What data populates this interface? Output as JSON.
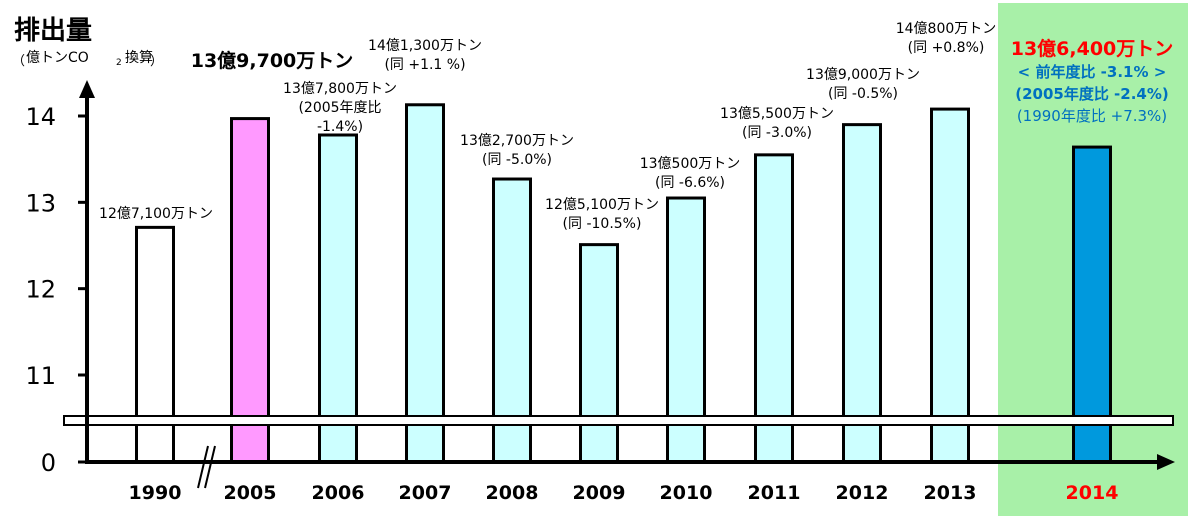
{
  "header": {
    "y_title": "排出量",
    "unit_open": "（",
    "unit_main": "億トンCO",
    "unit_sub": "2",
    "unit_tail": "換算",
    "unit_close": "）"
  },
  "chart_data": {
    "type": "bar",
    "title": "",
    "xlabel": "",
    "ylabel": "排出量 (億トンCO2換算)",
    "ylim": [
      11,
      14.5
    ],
    "y_ticks": [
      0,
      11,
      12,
      13,
      14
    ],
    "axis_break": true,
    "categories": [
      "1990",
      "2005",
      "2006",
      "2007",
      "2008",
      "2009",
      "2010",
      "2011",
      "2012",
      "2013",
      "2014"
    ],
    "values": [
      12.71,
      13.97,
      13.78,
      14.13,
      13.27,
      12.51,
      13.05,
      13.55,
      13.9,
      14.08,
      13.64
    ],
    "highlight_category": "2014",
    "colors": {
      "1990": "#ffffff",
      "2005": "#ff99ff",
      "default": "#ccffff",
      "2014": "#0099dd",
      "highlight_bg": "#a8f0a8",
      "highlight_text_red": "#ff0000",
      "highlight_text_blue": "#0070c0",
      "axis": "#000000"
    },
    "annotations": [
      {
        "category": "1990",
        "lines": [
          "12億7,100万トン"
        ],
        "style": "normal"
      },
      {
        "category": "2005",
        "lines": [
          "13億9,700万トン"
        ],
        "style": "bold-large"
      },
      {
        "category": "2006",
        "lines": [
          "13億7,800万トン",
          "(2005年度比",
          "-1.4%)"
        ],
        "style": "normal"
      },
      {
        "category": "2007",
        "lines": [
          "14億1,300万トン",
          "(同 +1.1 %)"
        ],
        "style": "normal"
      },
      {
        "category": "2008",
        "lines": [
          "13億2,700万トン",
          "(同 -5.0%)"
        ],
        "style": "normal"
      },
      {
        "category": "2009",
        "lines": [
          "12億5,100万トン",
          "(同 -10.5%)"
        ],
        "style": "normal"
      },
      {
        "category": "2010",
        "lines": [
          "13億500万トン",
          "(同 -6.6%)"
        ],
        "style": "normal"
      },
      {
        "category": "2011",
        "lines": [
          "13億5,500万トン",
          "(同 -3.0%)"
        ],
        "style": "normal"
      },
      {
        "category": "2012",
        "lines": [
          "13億9,000万トン",
          "(同 -0.5%)"
        ],
        "style": "normal"
      },
      {
        "category": "2013",
        "lines": [
          "14億800万トン",
          "(同 +0.8%)"
        ],
        "style": "normal"
      },
      {
        "category": "2014",
        "lines": [
          "13億6,400万トン",
          "< 前年度比 -3.1% >",
          "(2005年度比 -2.4%)",
          "(1990年度比 +7.3%)"
        ],
        "style": "highlight"
      }
    ]
  }
}
